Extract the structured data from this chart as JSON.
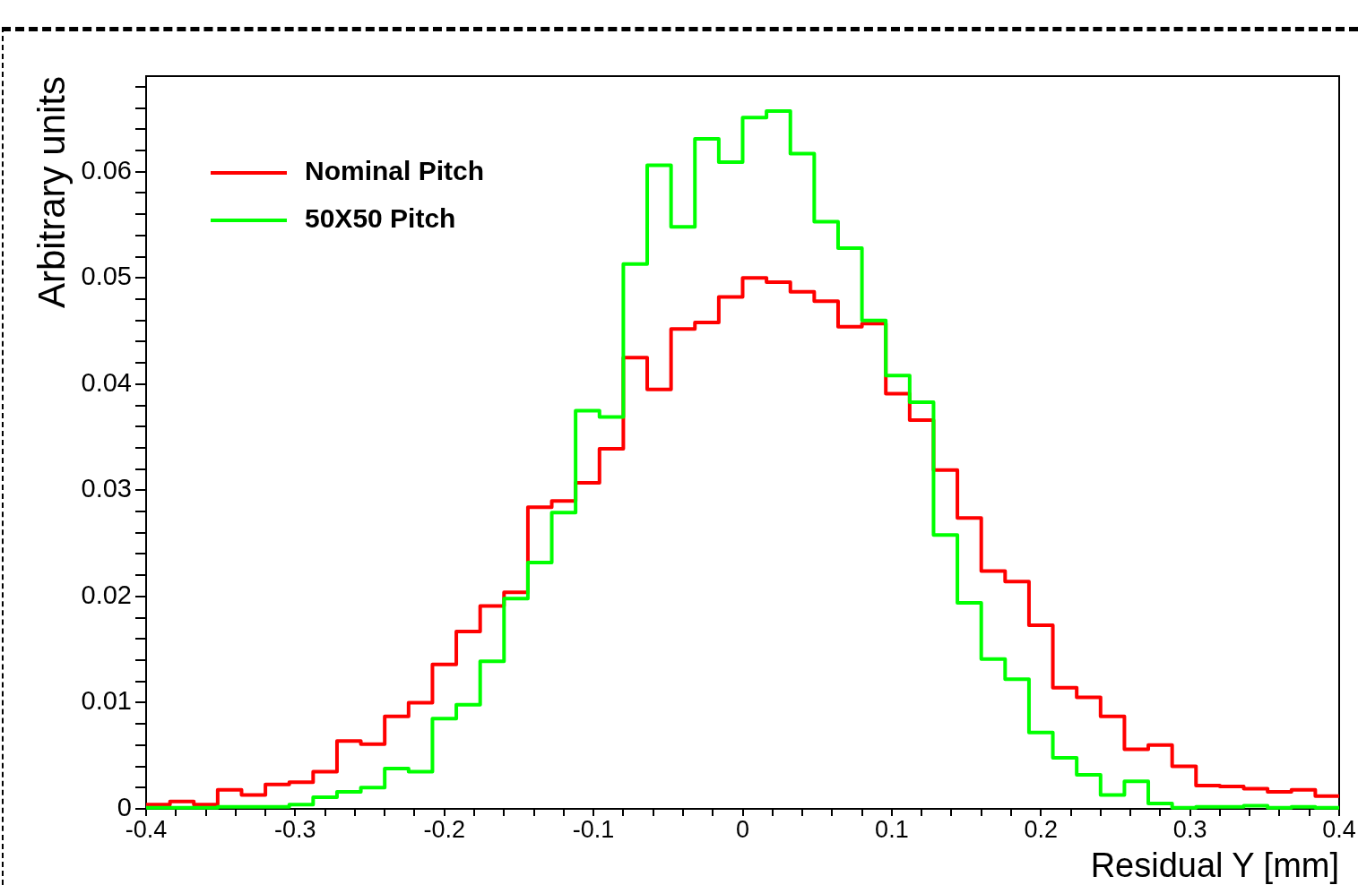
{
  "chart_data": {
    "type": "histogram",
    "xlabel": "Residual Y [mm]",
    "ylabel": "Arbitrary units",
    "bins": [
      -0.4,
      -0.384,
      -0.368,
      -0.352,
      -0.336,
      -0.32,
      -0.304,
      -0.288,
      -0.272,
      -0.256,
      -0.24,
      -0.224,
      -0.208,
      -0.192,
      -0.176,
      -0.16,
      -0.144,
      -0.128,
      -0.112,
      -0.096,
      -0.08,
      -0.064,
      -0.048,
      -0.032,
      -0.016,
      0,
      0.016,
      0.032,
      0.048,
      0.064,
      0.08,
      0.096,
      0.112,
      0.128,
      0.144,
      0.16,
      0.176,
      0.192,
      0.208,
      0.224,
      0.24,
      0.256,
      0.272,
      0.288,
      0.304,
      0.32,
      0.336,
      0.352,
      0.368,
      0.384,
      0.4
    ],
    "series": [
      {
        "name": "Nominal Pitch",
        "color": "#ff0000",
        "values": [
          0.0004,
          0.0007,
          0.0004,
          0.0018,
          0.0013,
          0.0023,
          0.0025,
          0.0035,
          0.0064,
          0.0061,
          0.0087,
          0.01,
          0.0136,
          0.0167,
          0.0191,
          0.0204,
          0.0284,
          0.029,
          0.0307,
          0.0339,
          0.0425,
          0.0395,
          0.0452,
          0.0458,
          0.0482,
          0.05,
          0.0496,
          0.0487,
          0.0478,
          0.0454,
          0.0457,
          0.0391,
          0.0366,
          0.0319,
          0.0274,
          0.0224,
          0.0214,
          0.0173,
          0.0114,
          0.0105,
          0.0087,
          0.0056,
          0.006,
          0.004,
          0.0022,
          0.0021,
          0.0019,
          0.0016,
          0.0018,
          0.0012
        ]
      },
      {
        "name": "50X50 Pitch",
        "color": "#00ff00",
        "values": [
          0.0001,
          0.0001,
          0.0001,
          0.0002,
          0.0002,
          0.0002,
          0.0004,
          0.0011,
          0.0016,
          0.002,
          0.0038,
          0.0035,
          0.0085,
          0.0098,
          0.0139,
          0.0198,
          0.0232,
          0.0279,
          0.0375,
          0.0369,
          0.0513,
          0.0606,
          0.0548,
          0.0631,
          0.0609,
          0.0651,
          0.0657,
          0.0617,
          0.0553,
          0.0528,
          0.046,
          0.0408,
          0.0383,
          0.0258,
          0.0194,
          0.0141,
          0.0122,
          0.0072,
          0.0048,
          0.0032,
          0.0013,
          0.0026,
          0.0005,
          0.0001,
          0.0002,
          0.0002,
          0.0003,
          0.0001,
          0.0002,
          0.0001
        ]
      }
    ],
    "xlim": [
      -0.4,
      0.4
    ],
    "xticks": [
      -0.4,
      {
        "value": -0.38,
        "label": null
      },
      {
        "value": -0.36,
        "label": null
      },
      {
        "value": -0.34,
        "label": null
      },
      {
        "value": -0.32,
        "label": null
      },
      -0.3,
      {
        "value": -0.28,
        "label": null
      },
      {
        "value": -0.26,
        "label": null
      },
      {
        "value": -0.24,
        "label": null
      },
      {
        "value": -0.22,
        "label": null
      },
      -0.2,
      {
        "value": -0.18,
        "label": null
      },
      {
        "value": -0.16,
        "label": null
      },
      {
        "value": -0.14,
        "label": null
      },
      {
        "value": -0.12,
        "label": null
      },
      -0.1,
      {
        "value": -0.08,
        "label": null
      },
      {
        "value": -0.06,
        "label": null
      },
      {
        "value": -0.04,
        "label": null
      },
      {
        "value": -0.02,
        "label": null
      },
      0,
      {
        "value": 0.02,
        "label": null
      },
      {
        "value": 0.04,
        "label": null
      },
      {
        "value": 0.06,
        "label": null
      },
      {
        "value": 0.08,
        "label": null
      },
      0.1,
      {
        "value": 0.12,
        "label": null
      },
      {
        "value": 0.14,
        "label": null
      },
      {
        "value": 0.16,
        "label": null
      },
      {
        "value": 0.18,
        "label": null
      },
      0.2,
      {
        "value": 0.22,
        "label": null
      },
      {
        "value": 0.24,
        "label": null
      },
      {
        "value": 0.26,
        "label": null
      },
      {
        "value": 0.28,
        "label": null
      },
      0.3,
      {
        "value": 0.32,
        "label": null
      },
      {
        "value": 0.34,
        "label": null
      },
      {
        "value": 0.36,
        "label": null
      },
      {
        "value": 0.38,
        "label": null
      },
      0.4
    ],
    "ylim": [
      0,
      0.069
    ],
    "yticks": [
      0,
      {
        "value": 0.002,
        "label": null
      },
      {
        "value": 0.004,
        "label": null
      },
      {
        "value": 0.006,
        "label": null
      },
      {
        "value": 0.008,
        "label": null
      },
      0.01,
      {
        "value": 0.012,
        "label": null
      },
      {
        "value": 0.014,
        "label": null
      },
      {
        "value": 0.016,
        "label": null
      },
      {
        "value": 0.018,
        "label": null
      },
      0.02,
      {
        "value": 0.022,
        "label": null
      },
      {
        "value": 0.024,
        "label": null
      },
      {
        "value": 0.026,
        "label": null
      },
      {
        "value": 0.028,
        "label": null
      },
      0.03,
      {
        "value": 0.032,
        "label": null
      },
      {
        "value": 0.034,
        "label": null
      },
      {
        "value": 0.036,
        "label": null
      },
      {
        "value": 0.038,
        "label": null
      },
      0.04,
      {
        "value": 0.042,
        "label": null
      },
      {
        "value": 0.044,
        "label": null
      },
      {
        "value": 0.046,
        "label": null
      },
      {
        "value": 0.048,
        "label": null
      },
      0.05,
      {
        "value": 0.052,
        "label": null
      },
      {
        "value": 0.054,
        "label": null
      },
      {
        "value": 0.056,
        "label": null
      },
      {
        "value": 0.058,
        "label": null
      },
      0.06,
      {
        "value": 0.062,
        "label": null
      },
      {
        "value": 0.064,
        "label": null
      },
      {
        "value": 0.066,
        "label": null
      },
      {
        "value": 0.068,
        "label": null
      }
    ],
    "legend": "top left"
  }
}
